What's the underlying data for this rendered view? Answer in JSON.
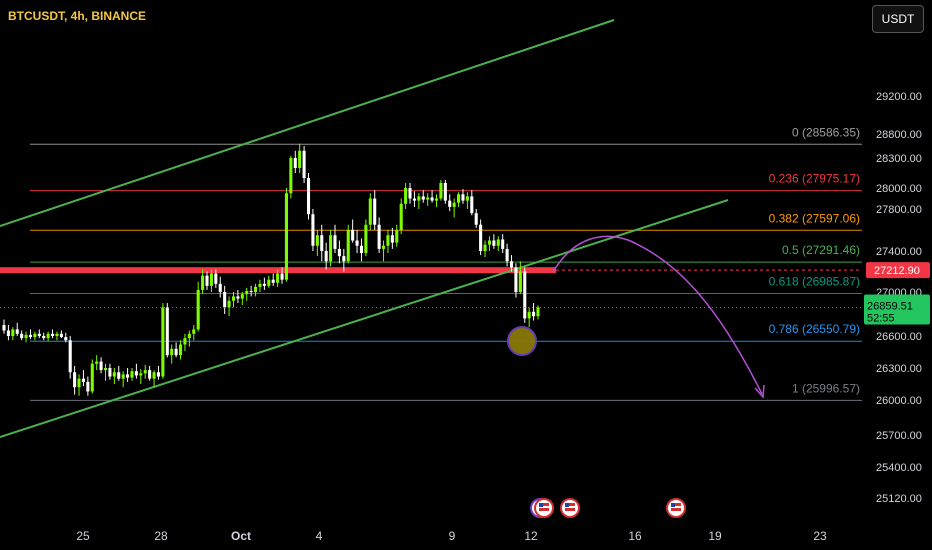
{
  "header": {
    "ticker": "BTCUSDT, 4h, BINANCE",
    "currency_button": "USDT"
  },
  "chart_data": {
    "type": "candlestick",
    "symbol": "BTCUSDT",
    "timeframe": "4h",
    "exchange": "BINANCE",
    "y_ticks": [
      29200,
      28800,
      28300,
      28000,
      27800,
      27400,
      27000,
      26600,
      26300,
      26000,
      25700,
      25400,
      25120
    ],
    "y_tick_labels": [
      "29200.00",
      "28800.00",
      "28300.00",
      "28000.00",
      "27800.00",
      "27400.00",
      "27000.00",
      "26600.00",
      "26300.00",
      "26000.00",
      "25700.00",
      "25400.00",
      "25120.00"
    ],
    "x_tick_labels": [
      "25",
      "28",
      "Oct",
      "4",
      "9",
      "12",
      "16",
      "19",
      "23"
    ],
    "fib_levels": [
      {
        "ratio": "0",
        "price": "28586.35",
        "label": "0 (28586.35)",
        "color": "#9e9e9e"
      },
      {
        "ratio": "0.236",
        "price": "27975.17",
        "label": "0.236 (27975.17)",
        "color": "#f23645"
      },
      {
        "ratio": "0.382",
        "price": "27597.06",
        "label": "0.382 (27597.06)",
        "color": "#ff9800"
      },
      {
        "ratio": "0.5",
        "price": "27291.46",
        "label": "0.5 (27291.46)",
        "color": "#4caf50"
      },
      {
        "ratio": "0.618",
        "price": "26985.87",
        "label": "0.618 (26985.87)",
        "color": "#089981"
      },
      {
        "ratio": "0.786",
        "price": "26550.79",
        "label": "0.786 (26550.79)",
        "color": "#2196f3"
      },
      {
        "ratio": "1",
        "price": "25996.57",
        "label": "1 (25996.57)",
        "color": "#787b86"
      }
    ],
    "resistance_level": {
      "price": "27212.90",
      "color": "#f23645"
    },
    "current_price": {
      "price": "26859.51",
      "countdown": "52:55",
      "color": "#22c55e"
    },
    "channel_color": "#4caf50",
    "projection_color": "#b44fd6",
    "candle_up_color": "#7cfc00",
    "candle_down_color": "#ffffff",
    "candles": [
      [
        26700,
        26750,
        26620,
        26650
      ],
      [
        26650,
        26700,
        26560,
        26600
      ],
      [
        26600,
        26680,
        26560,
        26660
      ],
      [
        26660,
        26720,
        26600,
        26620
      ],
      [
        26620,
        26650,
        26560,
        26580
      ],
      [
        26580,
        26640,
        26540,
        26610
      ],
      [
        26610,
        26660,
        26570,
        26590
      ],
      [
        26590,
        26640,
        26560,
        26620
      ],
      [
        26620,
        26660,
        26580,
        26600
      ],
      [
        26600,
        26630,
        26560,
        26580
      ],
      [
        26580,
        26640,
        26550,
        26620
      ],
      [
        26620,
        26660,
        26580,
        26600
      ],
      [
        26600,
        26640,
        26560,
        26620
      ],
      [
        26620,
        26650,
        26580,
        26590
      ],
      [
        26590,
        26630,
        26540,
        26560
      ],
      [
        26560,
        26600,
        26200,
        26260
      ],
      [
        26260,
        26320,
        26050,
        26120
      ],
      [
        26120,
        26240,
        26040,
        26200
      ],
      [
        26200,
        26280,
        26130,
        26170
      ],
      [
        26170,
        26220,
        26040,
        26080
      ],
      [
        26080,
        26380,
        26060,
        26340
      ],
      [
        26340,
        26420,
        26280,
        26360
      ],
      [
        26360,
        26400,
        26250,
        26280
      ],
      [
        26280,
        26340,
        26180,
        26300
      ],
      [
        26300,
        26340,
        26190,
        26220
      ],
      [
        26220,
        26300,
        26150,
        26260
      ],
      [
        26260,
        26320,
        26180,
        26200
      ],
      [
        26200,
        26270,
        26120,
        26240
      ],
      [
        26240,
        26300,
        26170,
        26210
      ],
      [
        26210,
        26300,
        26180,
        26270
      ],
      [
        26270,
        26340,
        26200,
        26230
      ],
      [
        26230,
        26290,
        26150,
        26250
      ],
      [
        26250,
        26330,
        26200,
        26280
      ],
      [
        26280,
        26320,
        26180,
        26200
      ],
      [
        26200,
        26280,
        26120,
        26260
      ],
      [
        26260,
        26320,
        26190,
        26220
      ],
      [
        26220,
        26900,
        26200,
        26860
      ],
      [
        26860,
        26900,
        26400,
        26420
      ],
      [
        26420,
        26520,
        26340,
        26480
      ],
      [
        26480,
        26540,
        26400,
        26420
      ],
      [
        26420,
        26560,
        26380,
        26520
      ],
      [
        26520,
        26620,
        26460,
        26580
      ],
      [
        26580,
        26650,
        26500,
        26620
      ],
      [
        26620,
        26700,
        26560,
        26660
      ],
      [
        26660,
        27100,
        26640,
        27020
      ],
      [
        27020,
        27220,
        26980,
        27160
      ],
      [
        27160,
        27200,
        27020,
        27060
      ],
      [
        27060,
        27220,
        27000,
        27180
      ],
      [
        27180,
        27220,
        27040,
        27080
      ],
      [
        27080,
        27150,
        26950,
        27000
      ],
      [
        27000,
        27060,
        26800,
        26860
      ],
      [
        26860,
        26960,
        26780,
        26920
      ],
      [
        26920,
        27000,
        26860,
        26960
      ],
      [
        26960,
        27020,
        26900,
        26940
      ],
      [
        26940,
        27000,
        26880,
        26980
      ],
      [
        26980,
        27040,
        26920,
        27010
      ],
      [
        27010,
        27060,
        26960,
        27000
      ],
      [
        27000,
        27080,
        26960,
        27050
      ],
      [
        27050,
        27120,
        27000,
        27080
      ],
      [
        27080,
        27140,
        27020,
        27060
      ],
      [
        27060,
        27160,
        27040,
        27120
      ],
      [
        27120,
        27180,
        27060,
        27090
      ],
      [
        27090,
        27220,
        27050,
        27180
      ],
      [
        27180,
        27240,
        27080,
        27120
      ],
      [
        27120,
        28000,
        27100,
        27950
      ],
      [
        27950,
        28350,
        27900,
        28300
      ],
      [
        28300,
        28450,
        28150,
        28200
      ],
      [
        28200,
        28600,
        28150,
        28450
      ],
      [
        28450,
        28550,
        28050,
        28100
      ],
      [
        28100,
        28150,
        27700,
        27750
      ],
      [
        27750,
        27800,
        27400,
        27450
      ],
      [
        27450,
        27600,
        27350,
        27550
      ],
      [
        27550,
        27650,
        27300,
        27400
      ],
      [
        27400,
        27480,
        27220,
        27300
      ],
      [
        27300,
        27600,
        27250,
        27550
      ],
      [
        27550,
        27650,
        27380,
        27420
      ],
      [
        27420,
        27500,
        27280,
        27350
      ],
      [
        27350,
        27420,
        27200,
        27300
      ],
      [
        27300,
        27650,
        27280,
        27600
      ],
      [
        27600,
        27700,
        27480,
        27500
      ],
      [
        27500,
        27600,
        27380,
        27450
      ],
      [
        27450,
        27520,
        27300,
        27380
      ],
      [
        27380,
        27700,
        27350,
        27650
      ],
      [
        27650,
        27950,
        27600,
        27900
      ],
      [
        27900,
        27980,
        27600,
        27650
      ],
      [
        27650,
        27720,
        27380,
        27420
      ],
      [
        27420,
        27500,
        27300,
        27450
      ],
      [
        27450,
        27600,
        27380,
        27550
      ],
      [
        27550,
        27620,
        27420,
        27480
      ],
      [
        27480,
        27650,
        27440,
        27600
      ],
      [
        27600,
        27900,
        27560,
        27850
      ],
      [
        27850,
        28050,
        27800,
        28000
      ],
      [
        28000,
        28050,
        27850,
        27900
      ],
      [
        27900,
        27970,
        27820,
        27880
      ],
      [
        27880,
        27950,
        27800,
        27920
      ],
      [
        27920,
        27980,
        27860,
        27890
      ],
      [
        27890,
        27950,
        27830,
        27910
      ],
      [
        27910,
        27980,
        27860,
        27880
      ],
      [
        27880,
        27940,
        27820,
        27900
      ],
      [
        27900,
        28080,
        27880,
        28050
      ],
      [
        28050,
        28080,
        27850,
        27880
      ],
      [
        27880,
        27940,
        27780,
        27820
      ],
      [
        27820,
        27900,
        27720,
        27860
      ],
      [
        27860,
        27960,
        27820,
        27940
      ],
      [
        27940,
        27990,
        27850,
        27880
      ],
      [
        27880,
        27960,
        27800,
        27920
      ],
      [
        27920,
        27980,
        27740,
        27760
      ],
      [
        27760,
        27800,
        27620,
        27650
      ],
      [
        27650,
        27700,
        27360,
        27400
      ],
      [
        27400,
        27500,
        27340,
        27460
      ],
      [
        27460,
        27540,
        27400,
        27500
      ],
      [
        27500,
        27560,
        27420,
        27450
      ],
      [
        27450,
        27540,
        27400,
        27510
      ],
      [
        27510,
        27560,
        27380,
        27420
      ],
      [
        27420,
        27470,
        27250,
        27300
      ],
      [
        27300,
        27360,
        27200,
        27240
      ],
      [
        27240,
        27280,
        26950,
        27000
      ],
      [
        27000,
        27300,
        26980,
        27200
      ],
      [
        27200,
        27240,
        26720,
        26760
      ],
      [
        26760,
        26860,
        26680,
        26820
      ],
      [
        26820,
        26900,
        26740,
        26780
      ],
      [
        26780,
        26880,
        26750,
        26860
      ]
    ]
  }
}
